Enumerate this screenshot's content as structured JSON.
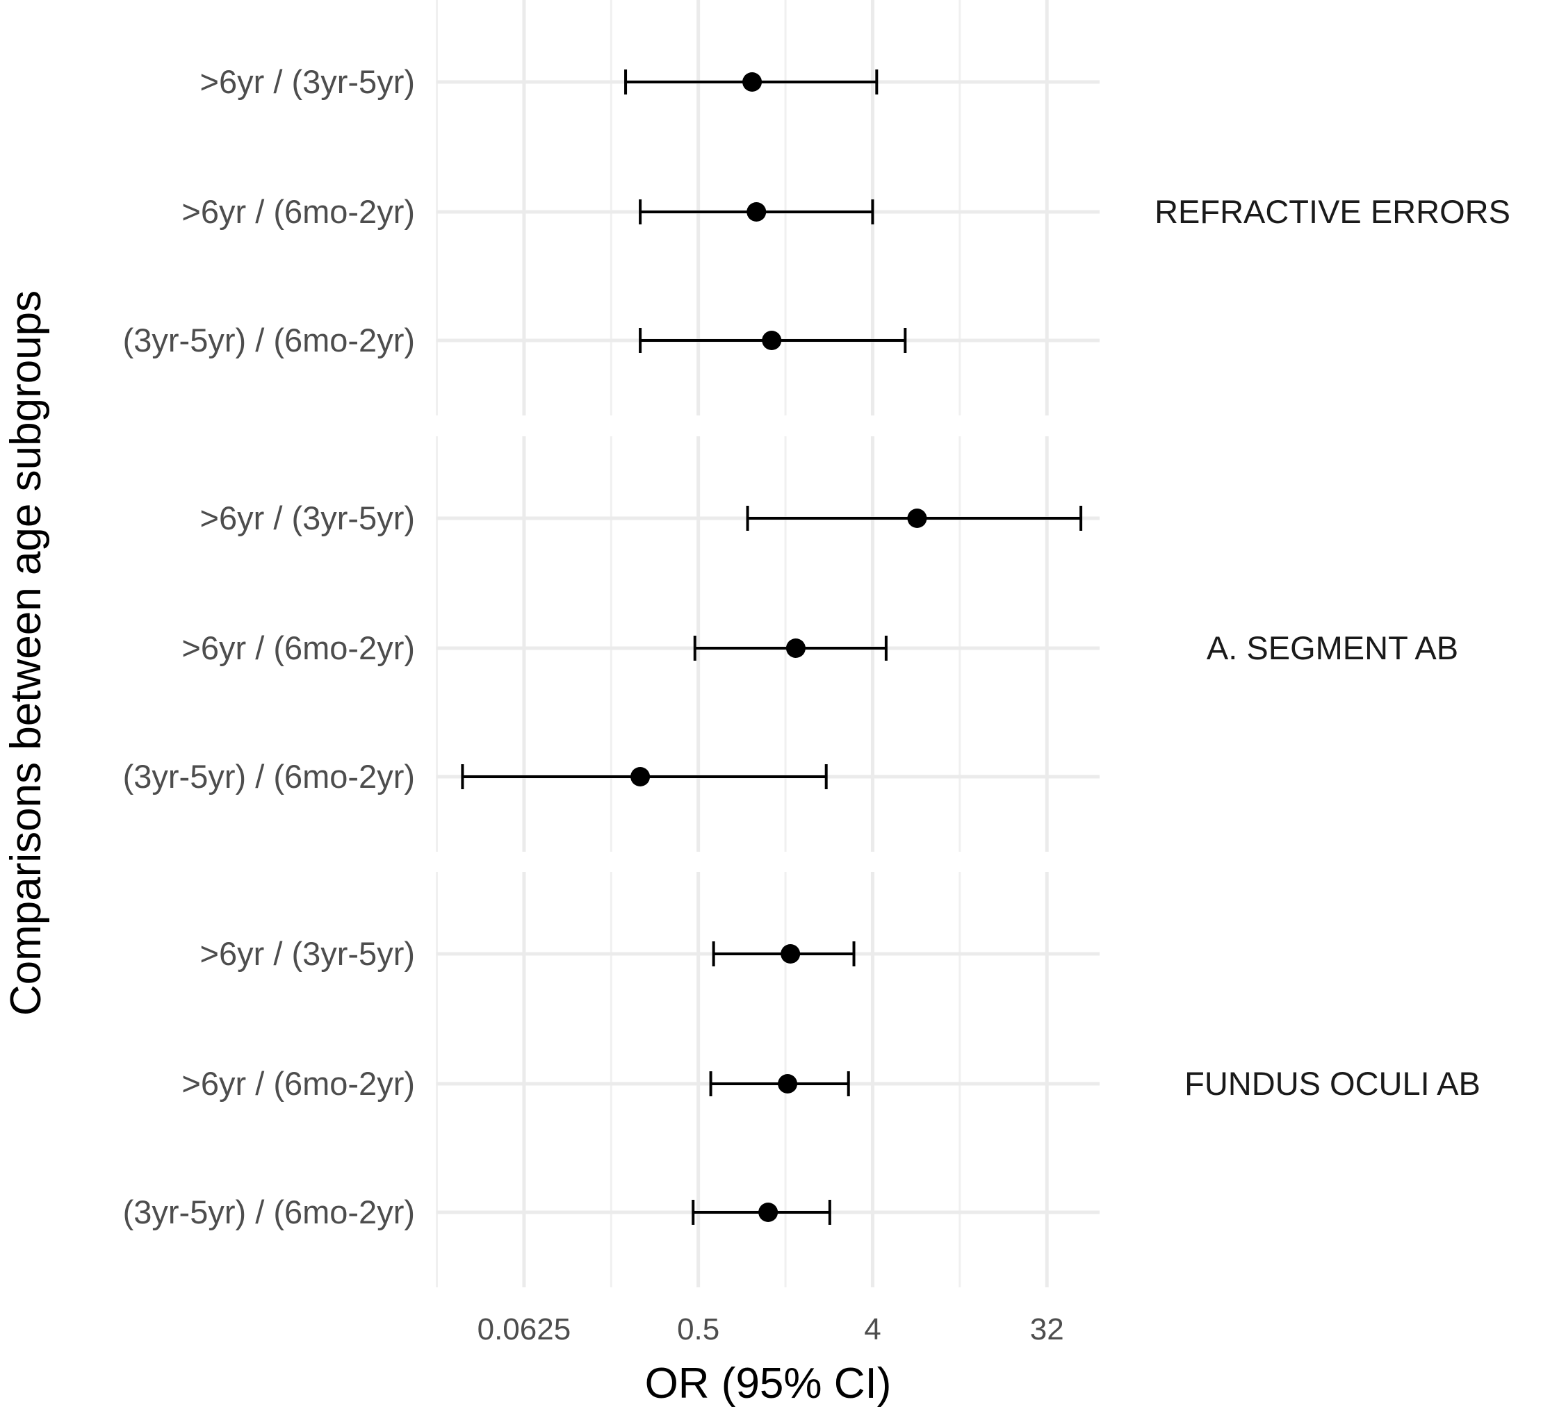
{
  "chart_data": {
    "type": "forest",
    "xlabel": "OR (95% CI)",
    "ylabel": "Comparisons between age subgroups",
    "x_scale": "log2",
    "xlim": [
      0.022,
      60
    ],
    "x_ticks": [
      0.0625,
      0.5,
      4,
      32
    ],
    "x_tick_labels": [
      "0.0625",
      "0.5",
      "4",
      "32"
    ],
    "grid": true,
    "panels": [
      {
        "label": "REFRACTIVE ERRORS",
        "rows": [
          {
            "label": ">6yr / (3yr-5yr)",
            "or": 0.95,
            "lower": 0.21,
            "upper": 4.2
          },
          {
            "label": ">6yr / (6mo-2yr)",
            "or": 1.0,
            "lower": 0.25,
            "upper": 4.0
          },
          {
            "label": "(3yr-5yr) / (6mo-2yr)",
            "or": 1.2,
            "lower": 0.25,
            "upper": 5.9
          }
        ]
      },
      {
        "label": "A. SEGMENT AB",
        "rows": [
          {
            "label": ">6yr / (3yr-5yr)",
            "or": 6.8,
            "lower": 0.9,
            "upper": 48.0
          },
          {
            "label": ">6yr / (6mo-2yr)",
            "or": 1.6,
            "lower": 0.48,
            "upper": 4.7
          },
          {
            "label": "(3yr-5yr) / (6mo-2yr)",
            "or": 0.25,
            "lower": 0.03,
            "upper": 2.3
          }
        ]
      },
      {
        "label": "FUNDUS OCULI AB",
        "rows": [
          {
            "label": ">6yr / (3yr-5yr)",
            "or": 1.5,
            "lower": 0.6,
            "upper": 3.2
          },
          {
            "label": ">6yr / (6mo-2yr)",
            "or": 1.45,
            "lower": 0.58,
            "upper": 3.0
          },
          {
            "label": "(3yr-5yr) / (6mo-2yr)",
            "or": 1.15,
            "lower": 0.47,
            "upper": 2.4
          }
        ]
      }
    ]
  }
}
